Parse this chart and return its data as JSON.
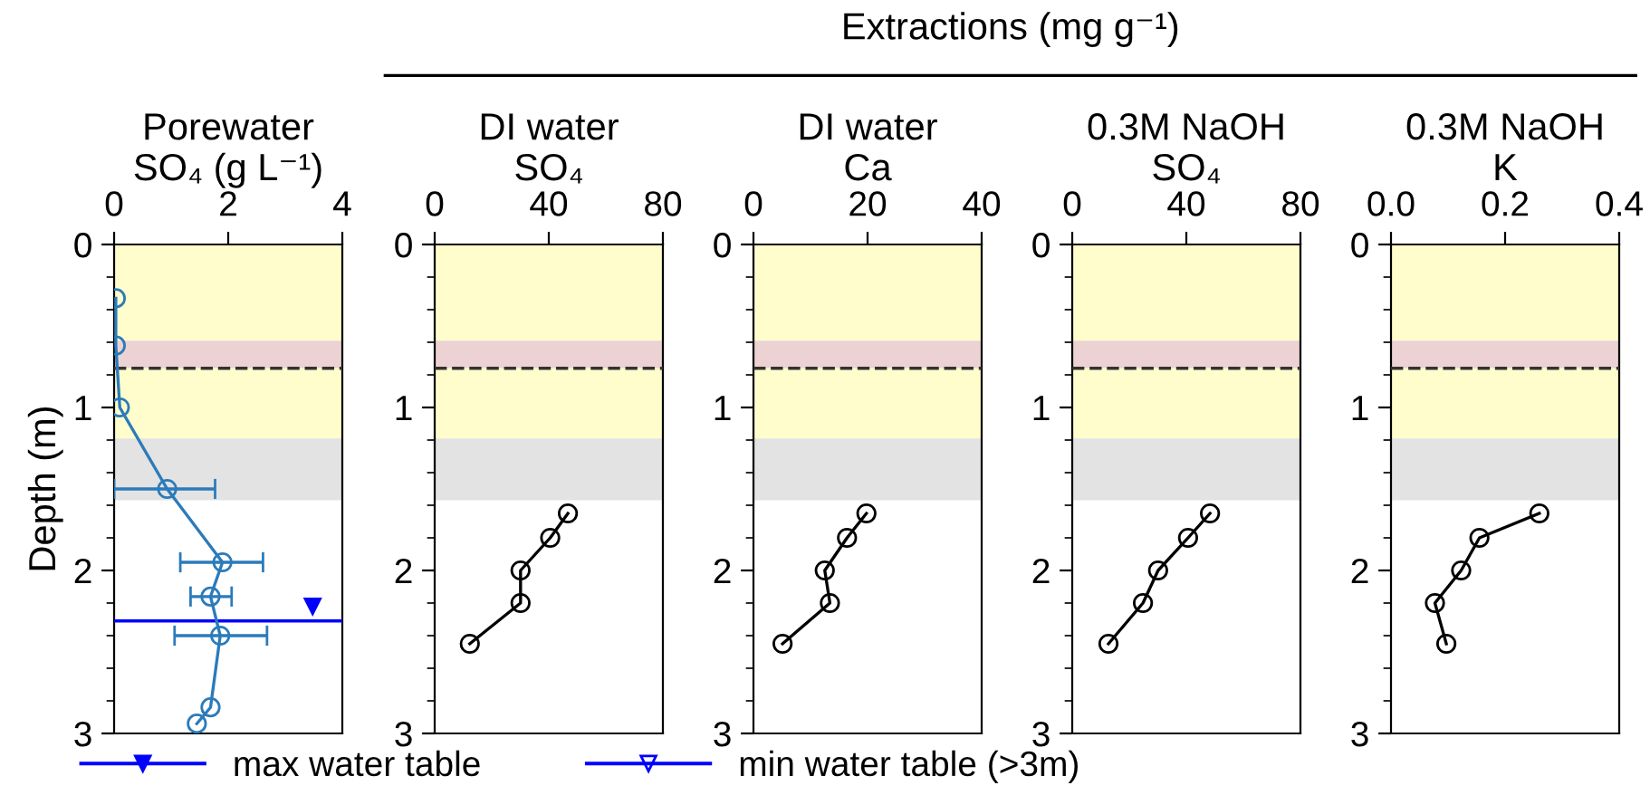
{
  "chart_data": [
    {
      "type": "line",
      "xlabel": "Porewater\nSO₄ (g L⁻¹)",
      "ylabel": "Depth (m)",
      "xlim": [
        0,
        4
      ],
      "xticks": [
        0,
        2,
        4
      ],
      "ylim": [
        3,
        0
      ],
      "yticks": [
        0,
        1,
        2,
        3
      ],
      "marker": "circle",
      "legend": "bottom",
      "series": [
        {
          "color": "#2b7bba",
          "x": [
            0.03,
            0.03,
            0.1,
            0.93,
            1.9,
            1.69,
            1.86,
            1.69,
            1.45
          ],
          "values": [
            0.33,
            0.62,
            1.0,
            1.5,
            1.95,
            2.16,
            2.4,
            2.84,
            2.94
          ],
          "xerrors": [
            null,
            null,
            null,
            [
              0,
              1.77
            ],
            [
              1.16,
              2.61
            ],
            [
              1.34,
              2.06
            ],
            [
              1.06,
              2.68
            ],
            null,
            null
          ]
        }
      ],
      "bands": [
        {
          "axis": "y",
          "from": 0,
          "to": 0.59,
          "color": "#fffdcc"
        },
        {
          "axis": "y",
          "from": 0.59,
          "to": 0.76,
          "color": "#ecd2d2"
        },
        {
          "axis": "y",
          "from": 0.76,
          "to": 1.19,
          "color": "#fffdcc"
        },
        {
          "axis": "y",
          "from": 1.19,
          "to": 1.57,
          "color": "#e3e3e3"
        }
      ],
      "ref_lines": [
        {
          "axis": "y",
          "value": 0.76,
          "color": "#333333",
          "line_style": "dashed"
        },
        {
          "axis": "y",
          "value": 2.31,
          "label": "max water table",
          "color": "#0000ff",
          "line_style": "solid"
        }
      ],
      "annotations": [
        "min water table (>3m)"
      ]
    },
    {
      "type": "line",
      "xlabel": "DI water\nSO₄",
      "xlim": [
        0,
        80
      ],
      "xticks": [
        0,
        40,
        80
      ],
      "ylim": [
        3,
        0
      ],
      "yticks": [
        0,
        1,
        2,
        3
      ],
      "marker": "circle",
      "series": [
        {
          "color": "#000000",
          "x": [
            46.7,
            40.5,
            30.1,
            30.1,
            12.3
          ],
          "values": [
            1.65,
            1.8,
            2.0,
            2.2,
            2.45
          ]
        }
      ],
      "bands": [
        {
          "axis": "y",
          "from": 0,
          "to": 0.59,
          "color": "#fffdcc"
        },
        {
          "axis": "y",
          "from": 0.59,
          "to": 0.76,
          "color": "#ecd2d2"
        },
        {
          "axis": "y",
          "from": 0.76,
          "to": 1.19,
          "color": "#fffdcc"
        },
        {
          "axis": "y",
          "from": 1.19,
          "to": 1.57,
          "color": "#e3e3e3"
        }
      ],
      "ref_lines": [
        {
          "axis": "y",
          "value": 0.76,
          "color": "#333333",
          "line_style": "dashed"
        }
      ],
      "annotations": [
        "Extractions (mg g⁻¹)"
      ]
    },
    {
      "type": "line",
      "xlabel": "DI water\nCa",
      "xlim": [
        0,
        40
      ],
      "xticks": [
        0,
        20,
        40
      ],
      "ylim": [
        3,
        0
      ],
      "yticks": [
        0,
        1,
        2,
        3
      ],
      "marker": "circle",
      "series": [
        {
          "color": "#000000",
          "x": [
            19.8,
            16.4,
            12.5,
            13.4,
            5.1
          ],
          "values": [
            1.65,
            1.8,
            2.0,
            2.2,
            2.45
          ]
        }
      ],
      "bands": [
        {
          "axis": "y",
          "from": 0,
          "to": 0.59,
          "color": "#fffdcc"
        },
        {
          "axis": "y",
          "from": 0.59,
          "to": 0.76,
          "color": "#ecd2d2"
        },
        {
          "axis": "y",
          "from": 0.76,
          "to": 1.19,
          "color": "#fffdcc"
        },
        {
          "axis": "y",
          "from": 1.19,
          "to": 1.57,
          "color": "#e3e3e3"
        }
      ],
      "ref_lines": [
        {
          "axis": "y",
          "value": 0.76,
          "color": "#333333",
          "line_style": "dashed"
        }
      ]
    },
    {
      "type": "line",
      "xlabel": "0.3M NaOH\nSO₄",
      "xlim": [
        0,
        80
      ],
      "xticks": [
        0,
        40,
        80
      ],
      "ylim": [
        3,
        0
      ],
      "yticks": [
        0,
        1,
        2,
        3
      ],
      "marker": "circle",
      "series": [
        {
          "color": "#000000",
          "x": [
            48.3,
            40.6,
            30.1,
            24.8,
            12.7
          ],
          "values": [
            1.65,
            1.8,
            2.0,
            2.2,
            2.45
          ]
        }
      ],
      "bands": [
        {
          "axis": "y",
          "from": 0,
          "to": 0.59,
          "color": "#fffdcc"
        },
        {
          "axis": "y",
          "from": 0.59,
          "to": 0.76,
          "color": "#ecd2d2"
        },
        {
          "axis": "y",
          "from": 0.76,
          "to": 1.19,
          "color": "#fffdcc"
        },
        {
          "axis": "y",
          "from": 1.19,
          "to": 1.57,
          "color": "#e3e3e3"
        }
      ],
      "ref_lines": [
        {
          "axis": "y",
          "value": 0.76,
          "color": "#333333",
          "line_style": "dashed"
        }
      ]
    },
    {
      "type": "line",
      "xlabel": "0.3M NaOH\nK",
      "xlim": [
        0,
        0.4
      ],
      "xticks": [
        {
          "value": 0,
          "label": "0.0"
        },
        0.2,
        0.4
      ],
      "ylim": [
        3,
        0
      ],
      "yticks": [
        0,
        1,
        2,
        3
      ],
      "marker": "circle",
      "series": [
        {
          "color": "#000000",
          "x": [
            0.26,
            0.155,
            0.123,
            0.077,
            0.097
          ],
          "values": [
            1.65,
            1.8,
            2.0,
            2.2,
            2.45
          ]
        }
      ],
      "bands": [
        {
          "axis": "y",
          "from": 0,
          "to": 0.59,
          "color": "#fffdcc"
        },
        {
          "axis": "y",
          "from": 0.59,
          "to": 0.76,
          "color": "#ecd2d2"
        },
        {
          "axis": "y",
          "from": 0.76,
          "to": 1.19,
          "color": "#fffdcc"
        },
        {
          "axis": "y",
          "from": 1.19,
          "to": 1.57,
          "color": "#e3e3e3"
        }
      ],
      "ref_lines": [
        {
          "axis": "y",
          "value": 0.76,
          "color": "#333333",
          "line_style": "dashed"
        }
      ]
    }
  ]
}
